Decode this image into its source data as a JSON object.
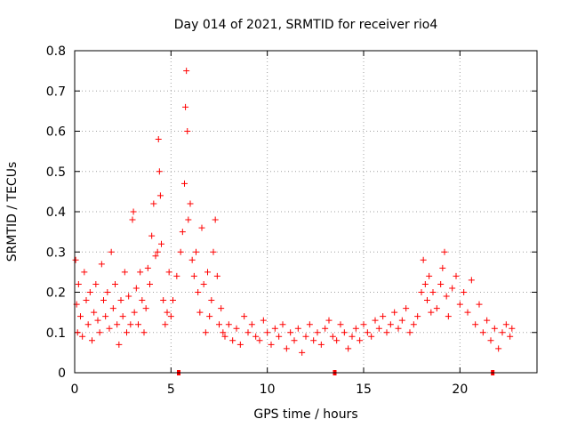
{
  "chart_data": {
    "type": "scatter",
    "title": "Day 014 of 2021, SRMTID for receiver rio4",
    "xlabel": "GPS time / hours",
    "ylabel": "SRMTID / TECUs",
    "xlim": [
      0,
      24
    ],
    "ylim": [
      0,
      0.8
    ],
    "xticks": [
      0,
      5,
      10,
      15,
      20
    ],
    "xtick_labels": [
      "0",
      "5",
      "10",
      "15",
      "20"
    ],
    "yticks": [
      0,
      0.1,
      0.2,
      0.3,
      0.4,
      0.5,
      0.6,
      0.7,
      0.8
    ],
    "ytick_labels": [
      "0",
      "0.1",
      "0.2",
      "0.3",
      "0.4",
      "0.5",
      "0.6",
      "0.7",
      "0.8"
    ],
    "grid": true,
    "marker": "+",
    "color": "#ff0000",
    "series": [
      {
        "name": "SRMTID",
        "x": [
          0.05,
          0.1,
          0.15,
          0.2,
          0.3,
          0.4,
          0.5,
          0.6,
          0.7,
          0.8,
          0.9,
          1.0,
          1.1,
          1.2,
          1.3,
          1.4,
          1.5,
          1.6,
          1.7,
          1.8,
          1.9,
          2.0,
          2.1,
          2.2,
          2.3,
          2.4,
          2.5,
          2.6,
          2.7,
          2.8,
          2.9,
          3.0,
          3.05,
          3.1,
          3.2,
          3.3,
          3.4,
          3.5,
          3.6,
          3.7,
          3.8,
          3.9,
          4.0,
          4.1,
          4.2,
          4.3,
          4.35,
          4.4,
          4.45,
          4.5,
          4.6,
          4.7,
          4.8,
          4.9,
          5.0,
          5.1,
          5.3,
          5.5,
          5.6,
          5.7,
          5.75,
          5.8,
          5.85,
          5.9,
          6.0,
          6.1,
          6.2,
          6.3,
          6.4,
          6.5,
          6.6,
          6.7,
          6.8,
          6.9,
          7.0,
          7.1,
          7.2,
          7.3,
          7.4,
          7.5,
          7.6,
          7.7,
          7.8,
          8.0,
          8.2,
          8.4,
          8.6,
          8.8,
          9.0,
          9.2,
          9.4,
          9.6,
          9.8,
          10.0,
          10.2,
          10.4,
          10.6,
          10.8,
          11.0,
          11.2,
          11.4,
          11.6,
          11.8,
          12.0,
          12.2,
          12.4,
          12.6,
          12.8,
          13.0,
          13.2,
          13.4,
          13.6,
          13.8,
          14.0,
          14.2,
          14.4,
          14.6,
          14.8,
          15.0,
          15.2,
          15.4,
          15.6,
          15.8,
          16.0,
          16.2,
          16.4,
          16.6,
          16.8,
          17.0,
          17.2,
          17.4,
          17.6,
          17.8,
          18.0,
          18.1,
          18.2,
          18.3,
          18.4,
          18.5,
          18.6,
          18.8,
          19.0,
          19.1,
          19.2,
          19.3,
          19.4,
          19.6,
          19.8,
          20.0,
          20.2,
          20.4,
          20.6,
          20.8,
          21.0,
          21.2,
          21.4,
          21.6,
          21.8,
          22.0,
          22.2,
          22.4,
          22.6,
          22.7
        ],
        "y": [
          0.28,
          0.17,
          0.1,
          0.22,
          0.14,
          0.09,
          0.25,
          0.18,
          0.12,
          0.2,
          0.08,
          0.15,
          0.22,
          0.13,
          0.1,
          0.27,
          0.18,
          0.14,
          0.2,
          0.11,
          0.3,
          0.16,
          0.22,
          0.12,
          0.07,
          0.18,
          0.14,
          0.25,
          0.1,
          0.19,
          0.12,
          0.38,
          0.4,
          0.15,
          0.21,
          0.12,
          0.25,
          0.18,
          0.1,
          0.16,
          0.26,
          0.22,
          0.34,
          0.42,
          0.29,
          0.3,
          0.58,
          0.5,
          0.44,
          0.32,
          0.18,
          0.12,
          0.15,
          0.25,
          0.14,
          0.18,
          0.24,
          0.3,
          0.35,
          0.47,
          0.66,
          0.75,
          0.6,
          0.38,
          0.42,
          0.28,
          0.24,
          0.3,
          0.2,
          0.15,
          0.36,
          0.22,
          0.1,
          0.25,
          0.14,
          0.18,
          0.3,
          0.38,
          0.24,
          0.12,
          0.16,
          0.1,
          0.09,
          0.12,
          0.08,
          0.11,
          0.07,
          0.14,
          0.1,
          0.12,
          0.09,
          0.08,
          0.13,
          0.1,
          0.07,
          0.11,
          0.09,
          0.12,
          0.06,
          0.1,
          0.08,
          0.11,
          0.05,
          0.09,
          0.12,
          0.08,
          0.1,
          0.07,
          0.11,
          0.13,
          0.09,
          0.08,
          0.12,
          0.1,
          0.06,
          0.09,
          0.11,
          0.08,
          0.12,
          0.1,
          0.09,
          0.13,
          0.11,
          0.14,
          0.1,
          0.12,
          0.15,
          0.11,
          0.13,
          0.16,
          0.1,
          0.12,
          0.14,
          0.2,
          0.28,
          0.22,
          0.18,
          0.24,
          0.15,
          0.2,
          0.16,
          0.22,
          0.26,
          0.3,
          0.19,
          0.14,
          0.21,
          0.24,
          0.17,
          0.2,
          0.15,
          0.23,
          0.12,
          0.17,
          0.1,
          0.13,
          0.08,
          0.11,
          0.06,
          0.1,
          0.12,
          0.09,
          0.11
        ]
      }
    ],
    "data_ticks_x": [
      5.4,
      13.5,
      21.7
    ]
  }
}
